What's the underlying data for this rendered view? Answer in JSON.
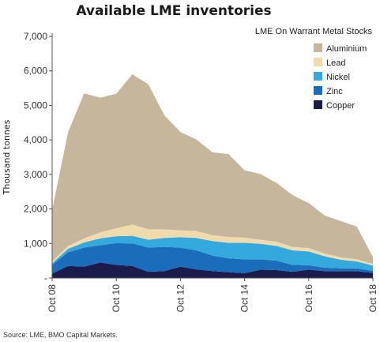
{
  "title": "Available LME inventories",
  "source": "Source: LME, BMO Capital Markets.",
  "colors": {
    "Aluminium": "#c6b79c",
    "Lead": "#efdbab",
    "Nickel": "#34a9de",
    "Zinc": "#1a6dba",
    "Copper": "#1b1b4d"
  },
  "chart_data": {
    "type": "area",
    "stacked": true,
    "title": "Available LME inventories",
    "ylabel": "Thousand tonnes",
    "xlabel": "",
    "legend_title": "LME On Warrant Metal Stocks",
    "legend_position": "top-right",
    "ylim": [
      0,
      7000
    ],
    "y_ticks": [
      "-",
      "1,000",
      "2,000",
      "3,000",
      "4,000",
      "5,000",
      "6,000",
      "7,000"
    ],
    "x_ticks": [
      "Oct 08",
      "Oct 10",
      "Oct 12",
      "Oct 14",
      "Oct 16",
      "Oct 18"
    ],
    "x": [
      "Oct 08",
      "Apr 09",
      "Oct 09",
      "Apr 10",
      "Oct 10",
      "Apr 11",
      "Oct 11",
      "Apr 12",
      "Oct 12",
      "Apr 13",
      "Oct 13",
      "Apr 14",
      "Oct 14",
      "Apr 15",
      "Oct 15",
      "Apr 16",
      "Oct 16",
      "Apr 17",
      "Oct 17",
      "Apr 18",
      "Oct 18"
    ],
    "series": [
      {
        "name": "Copper",
        "values": [
          130,
          350,
          330,
          450,
          380,
          350,
          180,
          200,
          330,
          250,
          200,
          170,
          140,
          240,
          230,
          180,
          240,
          200,
          200,
          200,
          150
        ]
      },
      {
        "name": "Zinc",
        "values": [
          250,
          400,
          550,
          500,
          630,
          650,
          700,
          700,
          550,
          550,
          450,
          400,
          400,
          300,
          270,
          200,
          130,
          100,
          80,
          80,
          60
        ]
      },
      {
        "name": "Nickel",
        "values": [
          50,
          100,
          150,
          200,
          200,
          220,
          230,
          260,
          300,
          360,
          420,
          450,
          480,
          450,
          430,
          420,
          400,
          330,
          250,
          200,
          150
        ]
      },
      {
        "name": "Lead",
        "values": [
          50,
          80,
          120,
          170,
          230,
          330,
          300,
          250,
          200,
          200,
          170,
          170,
          150,
          120,
          120,
          100,
          100,
          80,
          70,
          60,
          50
        ]
      },
      {
        "name": "Aluminium",
        "values": [
          1500,
          3300,
          4200,
          3900,
          3900,
          4350,
          4200,
          3300,
          2850,
          2650,
          2400,
          2400,
          1950,
          1900,
          1700,
          1500,
          1300,
          1100,
          1050,
          950,
          200
        ]
      }
    ]
  }
}
